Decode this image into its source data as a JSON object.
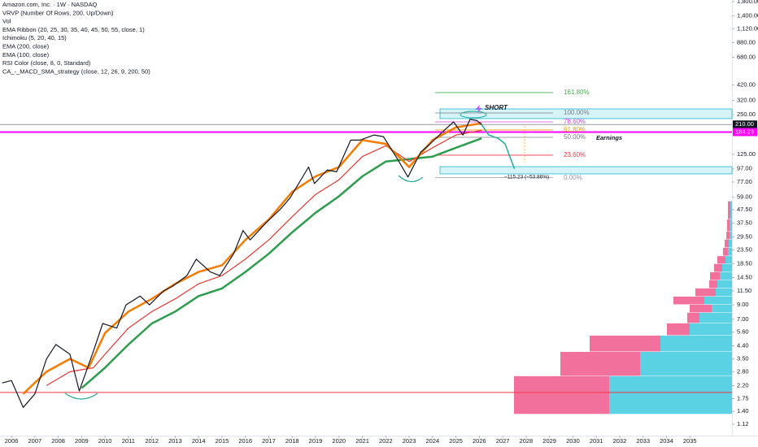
{
  "chart_data": {
    "type": "line",
    "header": [
      "Amazon.com, Inc. · 1W · NASDAQ",
      "VRVP (Number Of Rows, 200, Up/Down)",
      "Vol",
      "EMA Ribbon (20, 25, 30, 35, 40, 45, 50, 55, close, 1)",
      "Ichimoku (5, 20, 40, 15)",
      "EMA (200, close)",
      "EMA (100, close)",
      "RSI Color (close, 8, 0, Standard)",
      "CA_-_MACD_SMA_strategy (close, 12, 26, 9, 200, 50)"
    ],
    "log_scale": true,
    "xlim": [
      2005.51,
      2036.8
    ],
    "xticks": [
      2006,
      2007,
      2008,
      2009,
      2010,
      2011,
      2012,
      2013,
      2014,
      2015,
      2016,
      2017,
      2018,
      2019,
      2020,
      2021,
      2022,
      2023,
      2024,
      2025,
      2026,
      2027,
      2028,
      2029,
      2030,
      2031,
      2032,
      2033,
      2034,
      2035
    ],
    "ylim": [
      0.93,
      1850
    ],
    "yticks": [
      {
        "value": 1800,
        "label": "1,800.00"
      },
      {
        "value": 1400,
        "label": "1,400.00"
      },
      {
        "value": 1120,
        "label": "1,120.00"
      },
      {
        "value": 880,
        "label": "880.00"
      },
      {
        "value": 680,
        "label": "680.00"
      },
      {
        "value": 420,
        "label": "420.00"
      },
      {
        "value": 320,
        "label": "320.00"
      },
      {
        "value": 250,
        "label": "250.00"
      },
      {
        "value": 125,
        "label": "125.00"
      },
      {
        "value": 97,
        "label": "97.00"
      },
      {
        "value": 77,
        "label": "77.00"
      },
      {
        "value": 59,
        "label": "59.00"
      },
      {
        "value": 47.5,
        "label": "47.50"
      },
      {
        "value": 37.5,
        "label": "37.50"
      },
      {
        "value": 29.5,
        "label": "29.50"
      },
      {
        "value": 23.5,
        "label": "23.50"
      },
      {
        "value": 18.5,
        "label": "18.50"
      },
      {
        "value": 14.5,
        "label": "14.50"
      },
      {
        "value": 11.5,
        "label": "11.50"
      },
      {
        "value": 9,
        "label": "9.00"
      },
      {
        "value": 7,
        "label": "7.00"
      },
      {
        "value": 5.6,
        "label": "5.60"
      },
      {
        "value": 4.4,
        "label": "4.40"
      },
      {
        "value": 3.5,
        "label": "3.50"
      },
      {
        "value": 2.8,
        "label": "2.80"
      },
      {
        "value": 2.2,
        "label": "2.20"
      },
      {
        "value": 1.75,
        "label": "1.75"
      },
      {
        "value": 1.4,
        "label": "1.40"
      },
      {
        "value": 1.12,
        "label": "1.12"
      }
    ],
    "series": [
      {
        "color": "#131722",
        "width": 1.2,
        "x": [
          2005.6,
          2006.0,
          2006.5,
          2007.0,
          2007.5,
          2007.9,
          2008.5,
          2008.9,
          2009.5,
          2009.9,
          2010.5,
          2010.9,
          2011.5,
          2011.9,
          2012.5,
          2012.9,
          2013.5,
          2013.9,
          2014.5,
          2014.9,
          2015.5,
          2015.9,
          2016.2,
          2016.9,
          2017.5,
          2017.9,
          2018.7,
          2018.95,
          2019.5,
          2019.9,
          2020.5,
          2020.9,
          2021.5,
          2021.9,
          2022.5,
          2022.95,
          2023.5,
          2023.9,
          2024.5,
          2024.9,
          2025.3,
          2025.6,
          2025.9,
          2026.1
        ],
        "values": [
          2.3,
          2.4,
          1.5,
          1.9,
          3.5,
          4.5,
          3.8,
          2.0,
          4.0,
          6.5,
          6.0,
          9.0,
          10.5,
          9.0,
          11.5,
          12.5,
          15,
          20,
          16,
          15,
          22,
          33,
          28,
          38,
          48,
          58,
          100,
          75,
          95,
          92,
          160,
          160,
          175,
          170,
          115,
          84,
          130,
          150,
          190,
          220,
          175,
          230,
          225,
          210
        ]
      },
      {
        "color": "#f57c00",
        "width": 2.5,
        "x": [
          2006.5,
          2007.5,
          2008.5,
          2009.3,
          2010,
          2011,
          2012,
          2013,
          2014,
          2015,
          2016,
          2017,
          2018,
          2019,
          2020,
          2021,
          2022,
          2023,
          2024,
          2025,
          2026.1
        ],
        "values": [
          1.9,
          2.8,
          3.5,
          3.0,
          5.5,
          8,
          10,
          13,
          16,
          18,
          28,
          40,
          65,
          85,
          100,
          160,
          150,
          100,
          160,
          200,
          215
        ]
      },
      {
        "color": "#e53935",
        "width": 1.2,
        "x": [
          2007.5,
          2008.5,
          2009.5,
          2010,
          2011,
          2012,
          2013,
          2014,
          2015,
          2016,
          2017,
          2018,
          2019,
          2020,
          2021,
          2022,
          2023,
          2024,
          2025,
          2026.1
        ],
        "values": [
          2.2,
          2.8,
          3.0,
          3.8,
          6,
          8,
          10,
          13,
          15,
          20,
          28,
          42,
          62,
          80,
          120,
          145,
          110,
          140,
          175,
          190
        ]
      },
      {
        "color": "#2e9d4e",
        "width": 2.5,
        "x": [
          2009.0,
          2010,
          2011,
          2012,
          2013,
          2014,
          2015,
          2016,
          2017,
          2018,
          2019,
          2020,
          2021,
          2022,
          2023,
          2024,
          2025,
          2026.1
        ],
        "values": [
          2.1,
          3.0,
          4.5,
          6.5,
          8,
          10.5,
          12,
          16,
          22,
          32,
          45,
          60,
          85,
          110,
          115,
          120,
          140,
          165
        ]
      },
      {
        "color": "#22ab94",
        "width": 1.5,
        "x": [
          2026.1,
          2026.4,
          2026.8,
          2027.1,
          2027.5
        ],
        "values": [
          210,
          175,
          165,
          150,
          97
        ]
      }
    ],
    "fib_levels": [
      {
        "value": 367,
        "label": "161.80%",
        "color": "#4caf50"
      },
      {
        "value": 257,
        "label": "100.00%",
        "color": "#787b86"
      },
      {
        "value": 220,
        "label": "78.60%",
        "color": "#d742e6"
      },
      {
        "value": 191,
        "label": "61.80%",
        "color": "#ff9800"
      },
      {
        "value": 168,
        "label": "50.00%",
        "color": "#787b86"
      },
      {
        "value": 123,
        "label": "23.60%",
        "color": "#f23645"
      },
      {
        "value": 83,
        "label": "0.00%",
        "color": "#9598a1"
      }
    ],
    "zones": [
      {
        "low": 233,
        "high": 276
      },
      {
        "low": 88.7,
        "high": 100.7
      }
    ],
    "price_lines": [
      {
        "value": 210,
        "label": "210.00",
        "color": "#9598a1",
        "box": "#131722"
      },
      {
        "value": 184.23,
        "label": "184.23",
        "color": "#ff00ff",
        "box": "#ff00ff"
      },
      {
        "value": 1.95,
        "color": "#f23645"
      }
    ],
    "annotations": [
      "SHORT",
      "Earnings",
      "−115.23 (−53.86%)"
    ],
    "vrvp": {
      "up_color": "#5ad2e3",
      "down_color": "#f2709c",
      "rows": [
        {
          "low": 1.33,
          "high": 2.59,
          "up": 151,
          "down": 117
        },
        {
          "low": 2.59,
          "high": 3.96,
          "up": 113,
          "down": 98
        },
        {
          "low": 3.96,
          "high": 5.26,
          "up": 88,
          "down": 87
        },
        {
          "low": 5.26,
          "high": 6.52,
          "up": 52,
          "down": 28
        },
        {
          "low": 6.52,
          "high": 7.84,
          "up": 40,
          "down": 15
        },
        {
          "low": 7.84,
          "high": 9.02,
          "up": 25,
          "down": 27
        },
        {
          "low": 9.02,
          "high": 10.4,
          "up": 34,
          "down": 38
        },
        {
          "low": 10.4,
          "high": 12.0,
          "up": 20,
          "down": 25
        },
        {
          "low": 12.0,
          "high": 13.8,
          "up": 18,
          "down": 10
        },
        {
          "low": 13.8,
          "high": 15.9,
          "up": 15,
          "down": 12
        },
        {
          "low": 15.9,
          "high": 18.4,
          "up": 12,
          "down": 10
        },
        {
          "low": 18.4,
          "high": 21.1,
          "up": 8,
          "down": 10
        },
        {
          "low": 21.1,
          "high": 24.4,
          "up": 5,
          "down": 6
        },
        {
          "low": 24.4,
          "high": 28.1,
          "up": 4,
          "down": 5
        },
        {
          "low": 28.1,
          "high": 32.3,
          "up": 3,
          "down": 4
        },
        {
          "low": 32.3,
          "high": 40.0,
          "up": 3,
          "down": 3
        },
        {
          "low": 40.0,
          "high": 55.0,
          "up": 2,
          "down": 3
        }
      ]
    }
  }
}
